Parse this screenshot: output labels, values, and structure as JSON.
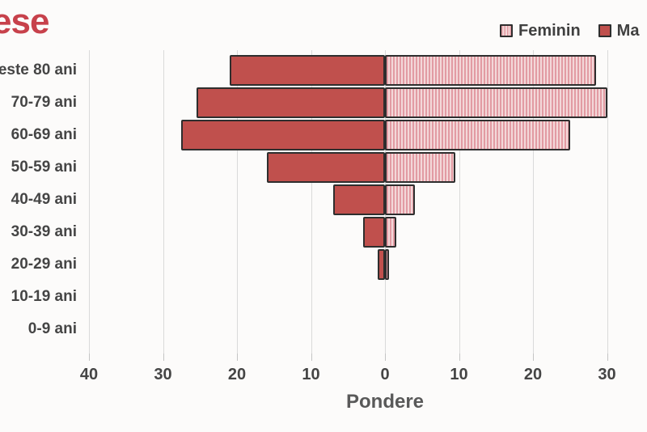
{
  "title": {
    "visible_text": "ese",
    "color": "#c7414b",
    "note": "title truncated by left edge of frame"
  },
  "legend": {
    "items": [
      {
        "label": "Feminin",
        "swatch": "striped-pink"
      },
      {
        "label": "Ma",
        "swatch": "solid-red",
        "note": "truncated by right edge of frame"
      }
    ]
  },
  "axis": {
    "x_label": "Pondere",
    "x_tick_labels": [
      "40",
      "30",
      "20",
      "10",
      "0",
      "10",
      "20",
      "30"
    ]
  },
  "colors": {
    "masculin_fill": "#c0504d",
    "feminin_stripe_dark": "#e29ba3",
    "feminin_stripe_light": "#f3d8d9",
    "bar_border": "#2e2e2e",
    "gridline": "#dadada",
    "text": "#454545",
    "title_red": "#c7414b",
    "background": "#fcfbfa"
  },
  "chart_data": {
    "type": "bar",
    "subtype": "population-pyramid-horizontal",
    "title_visible_fragment": "ese",
    "xlabel": "Pondere",
    "categories": [
      "este 80 ani",
      "70-79 ani",
      "60-69 ani",
      "50-59 ani",
      "40-49 ani",
      "30-39 ani",
      "20-29 ani",
      "10-19 ani",
      "0-9 ani"
    ],
    "series": [
      {
        "name": "Masculin",
        "side": "left",
        "color": "#c0504d",
        "values": [
          21,
          25.5,
          27.5,
          16,
          7,
          3,
          1,
          0,
          0
        ]
      },
      {
        "name": "Feminin",
        "side": "right",
        "pattern": "vertical-stripes",
        "values": [
          28.5,
          30,
          25,
          9.5,
          4,
          1.5,
          0.5,
          0,
          0
        ]
      }
    ],
    "x_ticks": [
      -40,
      -30,
      -20,
      -10,
      0,
      10,
      20,
      30,
      40
    ],
    "xlim": [
      -40,
      40
    ],
    "grid": true,
    "legend_position": "top-right"
  }
}
